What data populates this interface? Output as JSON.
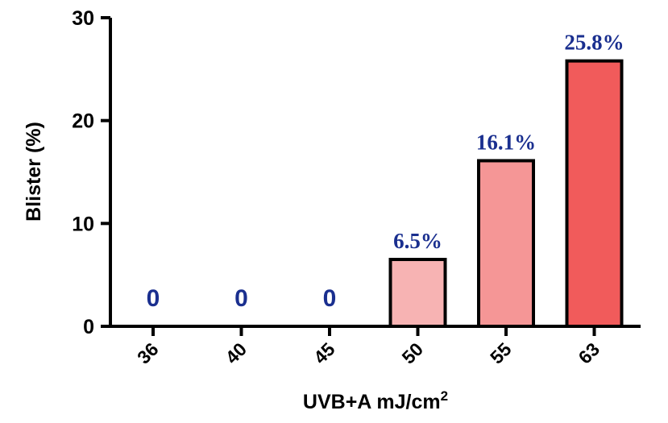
{
  "chart_data": {
    "type": "bar",
    "categories": [
      "36",
      "40",
      "45",
      "50",
      "55",
      "63"
    ],
    "values": [
      0,
      0,
      0,
      6.5,
      16.1,
      25.8
    ],
    "data_labels": [
      "0",
      "0",
      "0",
      "6.5%",
      "16.1%",
      "25.8%"
    ],
    "bar_colors": [
      "#ffffff",
      "#ffffff",
      "#ffffff",
      "#f7b3b3",
      "#f59696",
      "#f15b5b"
    ],
    "label_color": "#1a2f8f",
    "xlabel": "UVB+A mJ/cm",
    "xlabel_sup": "2",
    "ylabel": "Blister (%)",
    "ylim": [
      0,
      30
    ],
    "yticks": [
      "0",
      "10",
      "20",
      "30"
    ],
    "grid": false,
    "legend": "none"
  }
}
